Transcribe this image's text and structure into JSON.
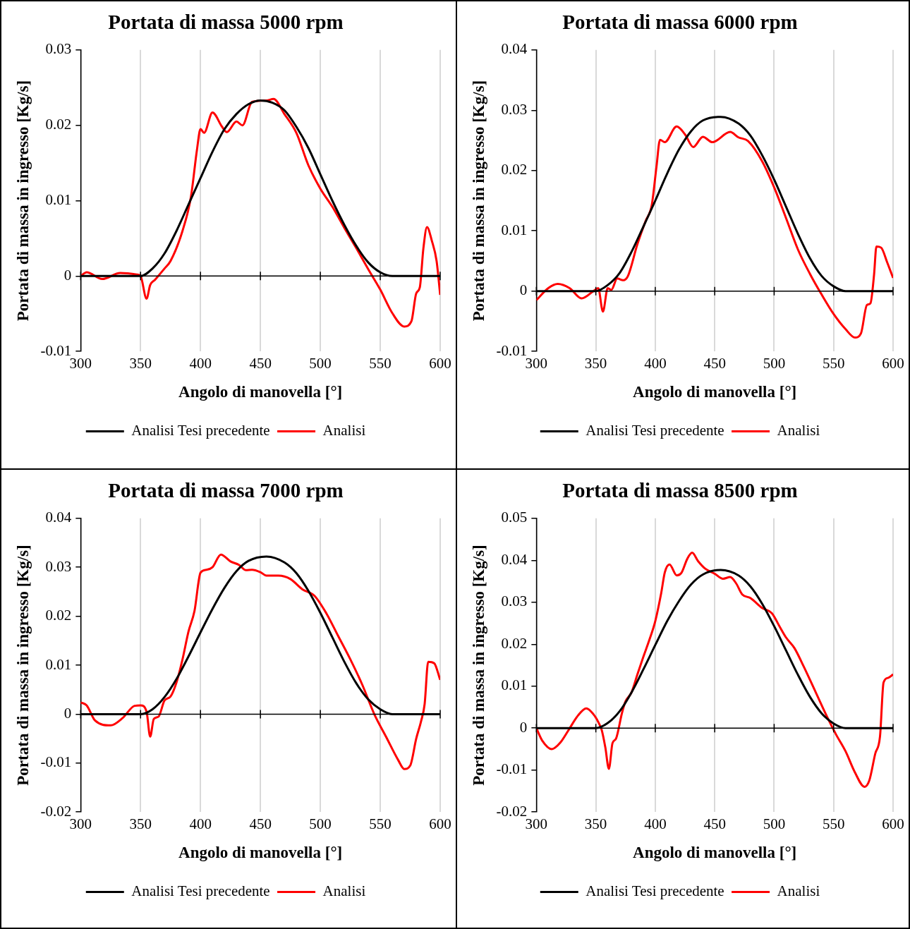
{
  "chart_data": [
    {
      "type": "line",
      "title": "Portata di massa 5000 rpm",
      "xlabel": "Angolo di manovella [°]",
      "ylabel": "Portata di massa in ingresso [Kg/s]",
      "xlim": [
        300,
        600
      ],
      "xticks": [
        300,
        350,
        400,
        450,
        500,
        550,
        600
      ],
      "ylim": [
        -0.01,
        0.03
      ],
      "yticks": [
        -0.01,
        0,
        0.01,
        0.02,
        0.03
      ],
      "grid": "x",
      "legend": "bottom",
      "marker": "none",
      "line_style": "solid",
      "series": [
        {
          "name": "Analisi Tesi precedente",
          "color": "#000000",
          "x": [
            300,
            350,
            360,
            370,
            380,
            390,
            400,
            410,
            420,
            430,
            440,
            450,
            460,
            470,
            480,
            490,
            500,
            510,
            520,
            530,
            540,
            550,
            560,
            600
          ],
          "values": [
            0,
            0,
            0.001,
            0.003,
            0.006,
            0.0095,
            0.013,
            0.0165,
            0.0195,
            0.0215,
            0.0228,
            0.0233,
            0.023,
            0.022,
            0.0198,
            0.017,
            0.0135,
            0.01,
            0.0068,
            0.004,
            0.0018,
            0.0005,
            0,
            0
          ]
        },
        {
          "name": "Analisi",
          "color": "#ff0000",
          "x": [
            300,
            305,
            318,
            333,
            347,
            350,
            355,
            358,
            362,
            370,
            375,
            385,
            392,
            397,
            400,
            403,
            410,
            418,
            422,
            430,
            435,
            443,
            455,
            461,
            470,
            480,
            490,
            500,
            510,
            520,
            530,
            540,
            550,
            560,
            570,
            576,
            580,
            583,
            586,
            589,
            593,
            597,
            600
          ],
          "values": [
            0,
            0.0005,
            -0.0004,
            0.0004,
            0.0002,
            0,
            -0.003,
            -0.0012,
            -0.0005,
            0.001,
            0.002,
            0.006,
            0.0105,
            0.0167,
            0.0195,
            0.019,
            0.0217,
            0.0198,
            0.0191,
            0.0205,
            0.02,
            0.0231,
            0.0233,
            0.0235,
            0.0215,
            0.019,
            0.0147,
            0.0116,
            0.0092,
            0.0064,
            0.0037,
            0.0009,
            -0.0018,
            -0.0049,
            -0.0067,
            -0.006,
            -0.0023,
            -0.0015,
            0.0037,
            0.0065,
            0.0047,
            0.002,
            -0.0025
          ]
        }
      ]
    },
    {
      "type": "line",
      "title": "Portata di massa 6000 rpm",
      "xlabel": "Angolo di manovella [°]",
      "ylabel": "Portata di massa in ingresso [Kg/s]",
      "xlim": [
        300,
        600
      ],
      "xticks": [
        300,
        350,
        400,
        450,
        500,
        550,
        600
      ],
      "ylim": [
        -0.01,
        0.04
      ],
      "yticks": [
        -0.01,
        0,
        0.01,
        0.02,
        0.03,
        0.04
      ],
      "grid": "x",
      "legend": "bottom",
      "marker": "none",
      "line_style": "solid",
      "series": [
        {
          "name": "Analisi Tesi precedente",
          "color": "#000000",
          "x": [
            300,
            350,
            360,
            370,
            380,
            390,
            400,
            410,
            420,
            430,
            440,
            455,
            470,
            480,
            490,
            500,
            510,
            520,
            530,
            540,
            550,
            560,
            600
          ],
          "values": [
            0,
            0,
            0.001,
            0.003,
            0.0065,
            0.0107,
            0.015,
            0.0195,
            0.0235,
            0.0265,
            0.0283,
            0.0289,
            0.0278,
            0.0258,
            0.0225,
            0.0185,
            0.014,
            0.0095,
            0.0055,
            0.0025,
            0.0008,
            0,
            0
          ]
        },
        {
          "name": "Analisi",
          "color": "#ff0000",
          "x": [
            300,
            310,
            318,
            328,
            338,
            348,
            352,
            356,
            360,
            363,
            368,
            373,
            377,
            385,
            392,
            397,
            401,
            404,
            408,
            418,
            425,
            432,
            440,
            448,
            463,
            470,
            478,
            490,
            500,
            510,
            520,
            530,
            540,
            550,
            560,
            568,
            573,
            578,
            581,
            584,
            586,
            590,
            595,
            600
          ],
          "values": [
            -0.0015,
            0.0005,
            0.0012,
            0.0005,
            -0.0012,
            0,
            0.0005,
            -0.0034,
            0.0005,
            0.0002,
            0.0021,
            0.0018,
            0.0025,
            0.0078,
            0.0117,
            0.0142,
            0.0206,
            0.0251,
            0.0247,
            0.0273,
            0.026,
            0.0239,
            0.0256,
            0.0247,
            0.0264,
            0.0255,
            0.0249,
            0.0215,
            0.0172,
            0.0121,
            0.0069,
            0.0029,
            -0.0006,
            -0.0038,
            -0.0063,
            -0.0077,
            -0.007,
            -0.0023,
            -0.002,
            0.0027,
            0.0074,
            0.0072,
            0.0048,
            0.0022
          ]
        }
      ]
    },
    {
      "type": "line",
      "title": "Portata di massa 7000 rpm",
      "xlabel": "Angolo di manovella [°]",
      "ylabel": "Portata di massa in ingresso [Kg/s]",
      "xlim": [
        300,
        600
      ],
      "xticks": [
        300,
        350,
        400,
        450,
        500,
        550,
        600
      ],
      "ylim": [
        -0.02,
        0.04
      ],
      "yticks": [
        -0.02,
        -0.01,
        0,
        0.01,
        0.02,
        0.03,
        0.04
      ],
      "grid": "x",
      "legend": "bottom",
      "marker": "none",
      "line_style": "solid",
      "series": [
        {
          "name": "Analisi Tesi precedente",
          "color": "#000000",
          "x": [
            300,
            350,
            360,
            370,
            380,
            390,
            400,
            410,
            420,
            430,
            440,
            455,
            470,
            480,
            490,
            500,
            510,
            520,
            530,
            540,
            550,
            560,
            600
          ],
          "values": [
            0,
            0,
            0.001,
            0.0035,
            0.0072,
            0.0118,
            0.0167,
            0.0215,
            0.0258,
            0.0292,
            0.0313,
            0.0322,
            0.031,
            0.0288,
            0.0252,
            0.0207,
            0.0157,
            0.0107,
            0.0063,
            0.003,
            0.001,
            0,
            0
          ]
        },
        {
          "name": "Analisi",
          "color": "#ff0000",
          "x": [
            300,
            305,
            312,
            325,
            335,
            345,
            350,
            355,
            358,
            361,
            365,
            370,
            375,
            380,
            385,
            390,
            395,
            400,
            405,
            410,
            417,
            425,
            432,
            438,
            443,
            450,
            455,
            465,
            475,
            485,
            495,
            505,
            515,
            525,
            535,
            545,
            555,
            565,
            570,
            575,
            580,
            584,
            587,
            590,
            595,
            600
          ],
          "values": [
            0.0024,
            0.0018,
            -0.0013,
            -0.0023,
            -0.0008,
            0.0017,
            0.0018,
            0.0005,
            -0.0046,
            -0.001,
            -0.0005,
            0.0028,
            0.0036,
            0.0065,
            0.0112,
            0.0169,
            0.0211,
            0.0289,
            0.0295,
            0.03,
            0.0326,
            0.0312,
            0.0305,
            0.0294,
            0.0295,
            0.029,
            0.0283,
            0.0283,
            0.0276,
            0.0255,
            0.0242,
            0.0206,
            0.0159,
            0.0112,
            0.006,
            0,
            -0.0047,
            -0.0094,
            -0.0112,
            -0.0105,
            -0.005,
            -0.0015,
            0.002,
            0.0107,
            0.0104,
            0.007
          ]
        }
      ]
    },
    {
      "type": "line",
      "title": "Portata di massa 8500 rpm",
      "xlabel": "Angolo di manovella [°]",
      "ylabel": "Portata di massa in ingresso [Kg/s]",
      "xlim": [
        300,
        600
      ],
      "xticks": [
        300,
        350,
        400,
        450,
        500,
        550,
        600
      ],
      "ylim": [
        -0.02,
        0.05
      ],
      "yticks": [
        -0.02,
        -0.01,
        0,
        0.01,
        0.02,
        0.03,
        0.04,
        0.05
      ],
      "grid": "x",
      "legend": "bottom",
      "marker": "none",
      "line_style": "solid",
      "series": [
        {
          "name": "Analisi Tesi precedente",
          "color": "#000000",
          "x": [
            300,
            350,
            360,
            370,
            380,
            390,
            400,
            410,
            420,
            430,
            440,
            455,
            470,
            480,
            490,
            500,
            510,
            520,
            530,
            540,
            550,
            560,
            600
          ],
          "values": [
            0,
            0,
            0.0012,
            0.004,
            0.0085,
            0.014,
            0.0198,
            0.0255,
            0.0303,
            0.0342,
            0.0366,
            0.0377,
            0.0364,
            0.0338,
            0.0296,
            0.0243,
            0.0185,
            0.0127,
            0.0075,
            0.0035,
            0.0011,
            0,
            0
          ]
        },
        {
          "name": "Analisi",
          "color": "#ff0000",
          "x": [
            300,
            305,
            313,
            320,
            327,
            335,
            342,
            348,
            352,
            355,
            358,
            361,
            364,
            367,
            372,
            375,
            380,
            385,
            390,
            395,
            400,
            405,
            408,
            412,
            418,
            422,
            427,
            431,
            436,
            442,
            450,
            457,
            463,
            468,
            473,
            480,
            490,
            498,
            505,
            510,
            517,
            525,
            535,
            545,
            552,
            560,
            568,
            576,
            580,
            585,
            589,
            592,
            596,
            600
          ],
          "values": [
            0,
            -0.003,
            -0.005,
            -0.0035,
            -0.0005,
            0.003,
            0.0047,
            0.0033,
            0.0015,
            -0.0005,
            -0.0046,
            -0.0097,
            -0.0036,
            -0.0025,
            0.0036,
            0.0064,
            0.0085,
            0.0128,
            0.017,
            0.021,
            0.0255,
            0.0322,
            0.0371,
            0.039,
            0.0364,
            0.037,
            0.0404,
            0.0418,
            0.0398,
            0.038,
            0.0368,
            0.0356,
            0.036,
            0.0345,
            0.0319,
            0.031,
            0.0286,
            0.0274,
            0.024,
            0.0216,
            0.0191,
            0.0146,
            0.0085,
            0.0024,
            -0.0015,
            -0.0055,
            -0.0106,
            -0.014,
            -0.0125,
            -0.0061,
            -0.002,
            0.0109,
            0.012,
            0.0128
          ]
        }
      ]
    }
  ]
}
